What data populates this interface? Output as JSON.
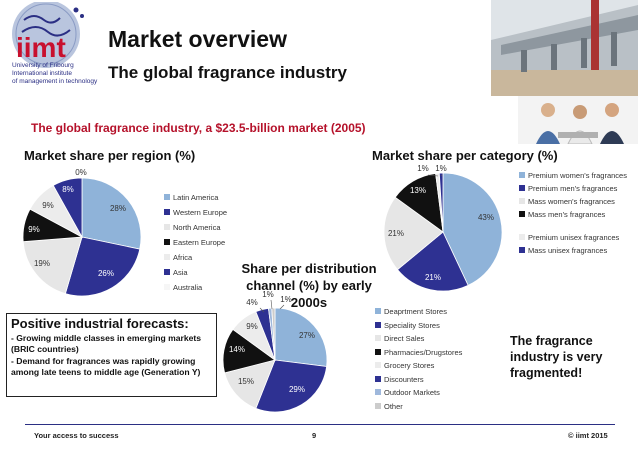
{
  "logo": {
    "text": "iimt",
    "lines": [
      "University of Fribourg",
      "International institute",
      "of management in technology"
    ]
  },
  "header": {
    "title": "Market overview",
    "subtitle": "The global fragrance industry"
  },
  "market_line": "The global fragrance industry, a $23.5-billion market (2005)",
  "section_heads": {
    "region": "Market share per region (%)",
    "category": "Market share per category (%)",
    "channel_line1": "Share per distribution",
    "channel_line2": "channel (%) by early 2000s"
  },
  "forecast": {
    "title": "Positive industrial forecasts:",
    "items": [
      "- Growing middle classes in emerging markets (BRIC countries)",
      "- Demand for fragrances was rapidly growing among late teens to middle age (Generation Y)"
    ]
  },
  "fragmented": "The fragrance industry is very fragmented!",
  "footer": {
    "left": "Your access to success",
    "page": "9",
    "right": "© iimt 2015"
  },
  "colors": {
    "light_blue": "#8fb3d9",
    "navy": "#2e3192",
    "light_gray": "#e3e3e3",
    "black": "#111111",
    "light_gray2": "#ececec",
    "mid_blue": "#9fb8dc",
    "title_red": "#b5112a"
  },
  "chart_data": [
    {
      "type": "pie",
      "title": "Market share per region (%)",
      "categories": [
        "Latin America",
        "Western Europe",
        "North America",
        "Eastern Europe",
        "Africa",
        "Asia",
        "Australia"
      ],
      "values": [
        28,
        26,
        19,
        9,
        9,
        8,
        0
      ],
      "labels": [
        "28%",
        "26%",
        "19%",
        "9%",
        "9%",
        "8%",
        "0%"
      ],
      "colors": [
        "#8fb3d9",
        "#2e3192",
        "#e6e6e6",
        "#111111",
        "#ececec",
        "#2e3192",
        "#ffffff"
      ],
      "legend": "right"
    },
    {
      "type": "pie",
      "title": "Market share per category (%)",
      "categories": [
        "Premium women's fragrances",
        "Premium men's fragrances",
        "Mass women's fragrances",
        "Mass men's fragrances",
        "Premium unisex fragrances",
        "Mass unisex fragrances"
      ],
      "values": [
        43,
        21,
        21,
        13,
        1,
        1
      ],
      "labels": [
        "43%",
        "21%",
        "21%",
        "13%",
        "1%",
        "1%"
      ],
      "colors": [
        "#8fb3d9",
        "#2e3192",
        "#e6e6e6",
        "#111111",
        "#ececec",
        "#2e3192"
      ],
      "legend": "right"
    },
    {
      "type": "pie",
      "title": "Share per distribution channel (%) by early 2000s",
      "categories": [
        "Deaprtment Stores",
        "Speciality Stores",
        "Direct Sales",
        "Pharmacies/Drugstores",
        "Grocery Stores",
        "Discounters",
        "Outdoor Markets",
        "Other"
      ],
      "values": [
        27,
        29,
        15,
        14,
        9,
        4,
        1,
        1
      ],
      "labels": [
        "27%",
        "29%",
        "15%",
        "14%",
        "9%",
        "4%",
        "1%",
        "1%"
      ],
      "colors": [
        "#8fb3d9",
        "#2e3192",
        "#e6e6e6",
        "#111111",
        "#ececec",
        "#2e3192",
        "#9fb8dc",
        "#cccccc"
      ],
      "legend": "right"
    }
  ]
}
